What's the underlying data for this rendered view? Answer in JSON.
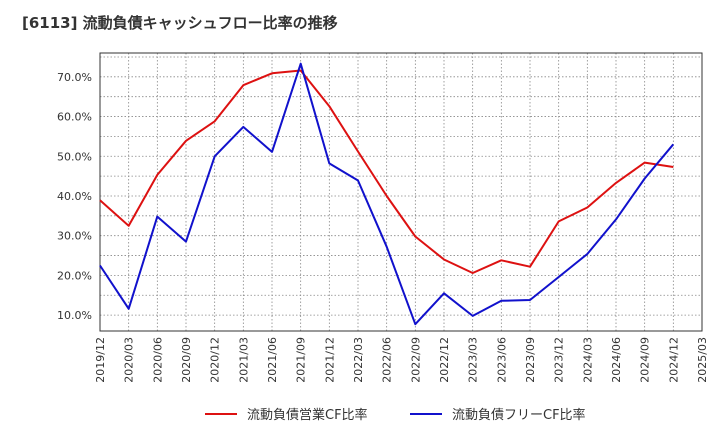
{
  "chart_data": {
    "type": "line",
    "title": "[6113]  流動負債キャッシュフロー比率の推移",
    "x": [
      "2019/12",
      "2020/03",
      "2020/06",
      "2020/09",
      "2020/12",
      "2021/03",
      "2021/06",
      "2021/09",
      "2021/12",
      "2022/03",
      "2022/06",
      "2022/09",
      "2022/12",
      "2023/03",
      "2023/06",
      "2023/09",
      "2023/12",
      "2024/03",
      "2024/06",
      "2024/09",
      "2024/12",
      "2025/03"
    ],
    "ylim": [
      6,
      76
    ],
    "yticks": [
      "10.0%",
      "20.0%",
      "30.0%",
      "40.0%",
      "50.0%",
      "60.0%",
      "70.0%"
    ],
    "ytick_values": [
      10,
      20,
      30,
      40,
      50,
      60,
      70
    ],
    "grid": true,
    "legend_position": "bottom",
    "series": [
      {
        "name": "流動負債営業CF比率",
        "color": "#dd1111",
        "values": [
          38.9,
          32.5,
          45.3,
          53.9,
          58.8,
          67.9,
          70.9,
          71.6,
          62.6,
          51.2,
          40.0,
          29.8,
          24.0,
          20.6,
          23.8,
          22.2,
          33.6,
          37.1,
          43.3,
          48.4,
          47.3,
          null
        ]
      },
      {
        "name": "流動負債フリーCF比率",
        "color": "#1111cc",
        "values": [
          22.5,
          11.6,
          34.8,
          28.5,
          50.0,
          57.4,
          51.1,
          73.3,
          48.2,
          43.9,
          27.2,
          7.7,
          15.5,
          9.8,
          13.6,
          13.8,
          19.6,
          25.4,
          34.1,
          44.4,
          53.0,
          null
        ]
      }
    ]
  }
}
